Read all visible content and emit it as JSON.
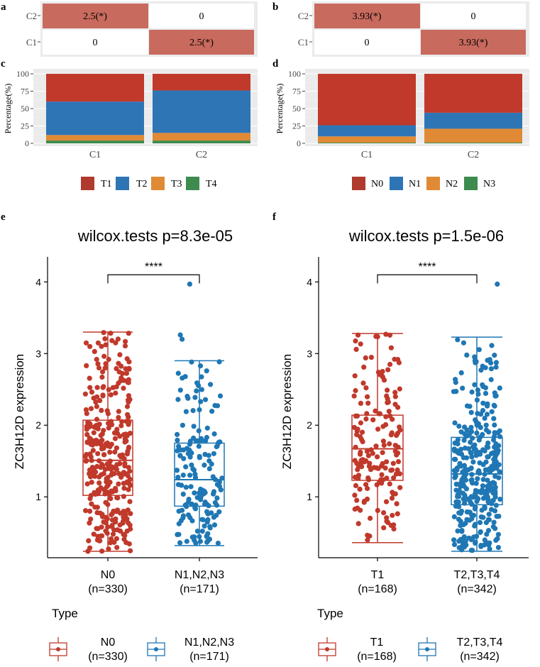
{
  "colors": {
    "red": "#c0392b",
    "red_fill": "#b03a2e",
    "blue": "#2e75b6",
    "blue_box": "#1f77b4",
    "orange": "#e08a35",
    "green": "#3d8b4f",
    "heat_hi": "#c96a5e",
    "panel_bg": "#ebebeb",
    "grid": "#ffffff"
  },
  "panels": {
    "a": {
      "label": "a"
    },
    "b": {
      "label": "b"
    },
    "c": {
      "label": "c"
    },
    "d": {
      "label": "d"
    },
    "e": {
      "label": "e"
    },
    "f": {
      "label": "f"
    }
  },
  "chart_data": [
    {
      "id": "a",
      "type": "heatmap",
      "rows": [
        "C2",
        "C1"
      ],
      "cols": [
        "",
        ""
      ],
      "cells": [
        [
          "2.5(*)",
          "0"
        ],
        [
          "0",
          "2.5(*)"
        ]
      ],
      "values": [
        [
          2.5,
          0
        ],
        [
          0,
          2.5
        ]
      ]
    },
    {
      "id": "b",
      "type": "heatmap",
      "rows": [
        "C2",
        "C1"
      ],
      "cols": [
        "",
        ""
      ],
      "cells": [
        [
          "3.93(*)",
          "0"
        ],
        [
          "0",
          "3.93(*)"
        ]
      ],
      "values": [
        [
          3.93,
          0
        ],
        [
          0,
          3.93
        ]
      ]
    },
    {
      "id": "c",
      "type": "bar",
      "stacked": true,
      "ylabel": "Percentage(%)",
      "yticks": [
        "0",
        "25",
        "50",
        "75",
        "100"
      ],
      "ylim": [
        0,
        100
      ],
      "categories": [
        "C1",
        "C2"
      ],
      "series": [
        {
          "name": "T4",
          "color": "green",
          "values": [
            4,
            4
          ]
        },
        {
          "name": "T3",
          "color": "orange",
          "values": [
            8,
            11
          ]
        },
        {
          "name": "T2",
          "color": "blue",
          "values": [
            48,
            61
          ]
        },
        {
          "name": "T1",
          "color": "red",
          "values": [
            40,
            24
          ]
        }
      ],
      "legend": [
        "T1",
        "T2",
        "T3",
        "T4"
      ]
    },
    {
      "id": "d",
      "type": "bar",
      "stacked": true,
      "ylabel": "Percentage(%)",
      "yticks": [
        "0",
        "25",
        "50",
        "75",
        "100"
      ],
      "ylim": [
        0,
        100
      ],
      "categories": [
        "C1",
        "C2"
      ],
      "series": [
        {
          "name": "N3",
          "color": "green",
          "values": [
            1,
            1
          ]
        },
        {
          "name": "N2",
          "color": "orange",
          "values": [
            9,
            20
          ]
        },
        {
          "name": "N1",
          "color": "blue",
          "values": [
            16,
            23
          ]
        },
        {
          "name": "N0",
          "color": "red",
          "values": [
            74,
            56
          ]
        }
      ],
      "legend": [
        "N0",
        "N1",
        "N2",
        "N3"
      ]
    },
    {
      "id": "e",
      "type": "box",
      "title": "wilcox.tests p=8.3e-05",
      "ylabel": "ZC3H12D expression",
      "yticks": [
        "1",
        "2",
        "3",
        "4"
      ],
      "ylim": [
        0.15,
        4.35
      ],
      "significance": "****",
      "legend_title": "Type",
      "groups": [
        {
          "name": "N0",
          "n": "(n=330)",
          "color": "red",
          "q1": 1.02,
          "median": 1.51,
          "q3": 2.07,
          "whisker_low": 0.24,
          "whisker_high": 3.3,
          "outliers": [],
          "count": 330,
          "seed": 11
        },
        {
          "name": "N1,N2,N3",
          "n": "(n=171)",
          "color": "blue",
          "q1": 0.87,
          "median": 1.24,
          "q3": 1.75,
          "whisker_low": 0.32,
          "whisker_high": 2.9,
          "outliers": [
            3.2,
            3.26,
            3.97
          ],
          "count": 171,
          "seed": 23
        }
      ]
    },
    {
      "id": "f",
      "type": "box",
      "title": "wilcox.tests p=1.5e-06",
      "ylabel": "ZC3H12D expression",
      "yticks": [
        "1",
        "2",
        "3",
        "4"
      ],
      "ylim": [
        0.15,
        4.35
      ],
      "significance": "****",
      "legend_title": "Type",
      "groups": [
        {
          "name": "T1",
          "n": "(n=168)",
          "color": "red",
          "q1": 1.23,
          "median": 1.67,
          "q3": 2.14,
          "whisker_low": 0.36,
          "whisker_high": 3.28,
          "outliers": [],
          "count": 168,
          "seed": 37
        },
        {
          "name": "T2,T3,T4",
          "n": "(n=342)",
          "color": "blue",
          "q1": 0.89,
          "median": 1.32,
          "q3": 1.83,
          "whisker_low": 0.24,
          "whisker_high": 3.23,
          "outliers": [
            3.97
          ],
          "count": 342,
          "seed": 53
        }
      ]
    }
  ]
}
